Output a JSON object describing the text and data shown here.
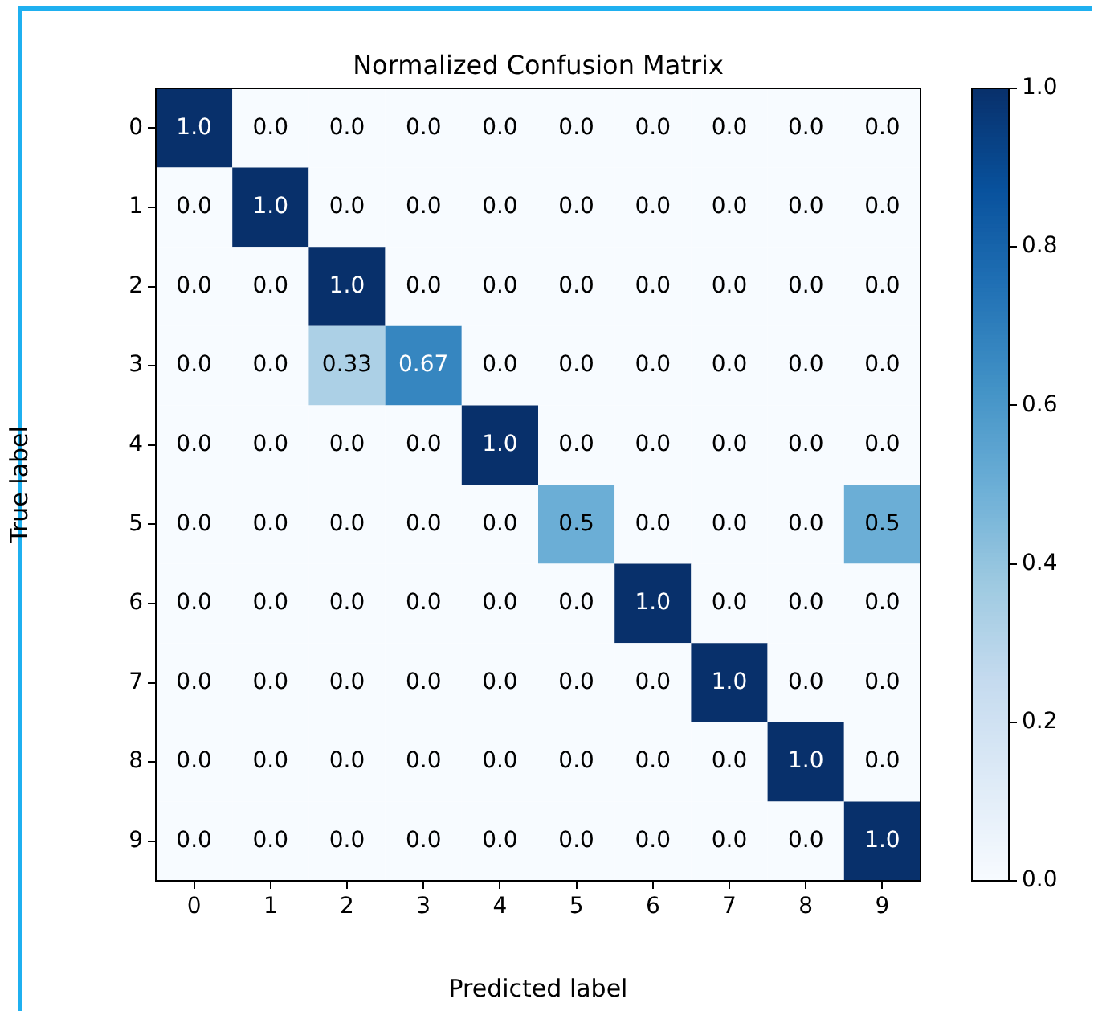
{
  "chart_data": {
    "type": "heatmap",
    "title": "Normalized Confusion Matrix",
    "xlabel": "Predicted label",
    "ylabel": "True label",
    "categories": [
      "0",
      "1",
      "2",
      "3",
      "4",
      "5",
      "6",
      "7",
      "8",
      "9"
    ],
    "y_categories": [
      "0",
      "1",
      "2",
      "3",
      "4",
      "5",
      "6",
      "7",
      "8",
      "9"
    ],
    "cells": [
      [
        1,
        0,
        0,
        0,
        0,
        0,
        0,
        0,
        0,
        0
      ],
      [
        0,
        1,
        0,
        0,
        0,
        0,
        0,
        0,
        0,
        0
      ],
      [
        0,
        0,
        1,
        0,
        0,
        0,
        0,
        0,
        0,
        0
      ],
      [
        0,
        0,
        0.33,
        0.67,
        0,
        0,
        0,
        0,
        0,
        0
      ],
      [
        0,
        0,
        0,
        0,
        1,
        0,
        0,
        0,
        0,
        0
      ],
      [
        0,
        0,
        0,
        0,
        0,
        0.5,
        0,
        0,
        0,
        0.5
      ],
      [
        0,
        0,
        0,
        0,
        0,
        0,
        1,
        0,
        0,
        0
      ],
      [
        0,
        0,
        0,
        0,
        0,
        0,
        0,
        1,
        0,
        0
      ],
      [
        0,
        0,
        0,
        0,
        0,
        0,
        0,
        0,
        1,
        0
      ],
      [
        0,
        0,
        0,
        0,
        0,
        0,
        0,
        0,
        0,
        1
      ]
    ],
    "cell_labels": [
      [
        "1.0",
        "0.0",
        "0.0",
        "0.0",
        "0.0",
        "0.0",
        "0.0",
        "0.0",
        "0.0",
        "0.0"
      ],
      [
        "0.0",
        "1.0",
        "0.0",
        "0.0",
        "0.0",
        "0.0",
        "0.0",
        "0.0",
        "0.0",
        "0.0"
      ],
      [
        "0.0",
        "0.0",
        "1.0",
        "0.0",
        "0.0",
        "0.0",
        "0.0",
        "0.0",
        "0.0",
        "0.0"
      ],
      [
        "0.0",
        "0.0",
        "0.33",
        "0.67",
        "0.0",
        "0.0",
        "0.0",
        "0.0",
        "0.0",
        "0.0"
      ],
      [
        "0.0",
        "0.0",
        "0.0",
        "0.0",
        "1.0",
        "0.0",
        "0.0",
        "0.0",
        "0.0",
        "0.0"
      ],
      [
        "0.0",
        "0.0",
        "0.0",
        "0.0",
        "0.0",
        "0.5",
        "0.0",
        "0.0",
        "0.0",
        "0.5"
      ],
      [
        "0.0",
        "0.0",
        "0.0",
        "0.0",
        "0.0",
        "0.0",
        "1.0",
        "0.0",
        "0.0",
        "0.0"
      ],
      [
        "0.0",
        "0.0",
        "0.0",
        "0.0",
        "0.0",
        "0.0",
        "0.0",
        "1.0",
        "0.0",
        "0.0"
      ],
      [
        "0.0",
        "0.0",
        "0.0",
        "0.0",
        "0.0",
        "0.0",
        "0.0",
        "0.0",
        "1.0",
        "0.0"
      ],
      [
        "0.0",
        "0.0",
        "0.0",
        "0.0",
        "0.0",
        "0.0",
        "0.0",
        "0.0",
        "0.0",
        "1.0"
      ]
    ],
    "clim": [
      0,
      1
    ],
    "cticks": [
      {
        "value": 0,
        "label": "0.0"
      },
      0.2,
      0.4,
      0.6,
      0.8,
      {
        "value": 1,
        "label": "1.0"
      }
    ]
  }
}
